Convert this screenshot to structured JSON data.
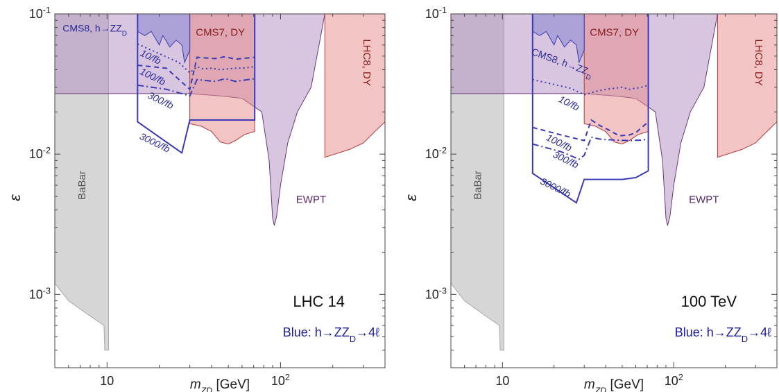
{
  "chart_data": [
    {
      "type": "area",
      "title": "LHC 14",
      "subtitle": "Blue: h→ZZ_D→4ℓ",
      "xlabel": "m_{Z_D} [GeV]",
      "ylabel": "ε",
      "xscale": "log",
      "yscale": "log",
      "xlim": [
        5,
        400
      ],
      "ylim": [
        0.0003,
        0.1
      ],
      "x_ticks": [
        "10",
        "10^2"
      ],
      "y_ticks": [
        "10^-3",
        "10^-2",
        "10^-1"
      ],
      "grid": false,
      "regions": [
        {
          "name": "BaBar",
          "color": "#c8c8c8",
          "label_at": [
            7.5,
            0.006
          ],
          "points": [
            [
              5,
              0.1
            ],
            [
              10.2,
              0.1
            ],
            [
              10.2,
              0.0004
            ],
            [
              9.7,
              0.0004
            ],
            [
              9.6,
              0.0006
            ],
            [
              8,
              0.0007
            ],
            [
              6,
              0.0009
            ],
            [
              5,
              0.0012
            ]
          ]
        },
        {
          "name": "EWPT",
          "color": "#b28bbf",
          "label_at": [
            150,
            0.0045
          ],
          "points": [
            [
              5,
              0.1
            ],
            [
              180,
              0.1
            ],
            [
              150,
              0.03
            ],
            [
              125,
              0.02
            ],
            [
              110,
              0.012
            ],
            [
              100,
              0.006
            ],
            [
              95,
              0.0036
            ],
            [
              92,
              0.0031
            ],
            [
              90,
              0.0035
            ],
            [
              86,
              0.009
            ],
            [
              78,
              0.02
            ],
            [
              60,
              0.025
            ],
            [
              45,
              0.026
            ],
            [
              30,
              0.027
            ],
            [
              20,
              0.027
            ],
            [
              5,
              0.027
            ]
          ]
        },
        {
          "name": "CMS7, DY",
          "color": "#e58a8a",
          "label_at": [
            45,
            0.07
          ],
          "points": [
            [
              30,
              0.1
            ],
            [
              71,
              0.1
            ],
            [
              71,
              0.0145
            ],
            [
              62,
              0.0138
            ],
            [
              55,
              0.0125
            ],
            [
              50,
              0.0118
            ],
            [
              45,
              0.0122
            ],
            [
              40,
              0.0145
            ],
            [
              35,
              0.0158
            ],
            [
              30,
              0.0165
            ]
          ]
        },
        {
          "name": "LHC8, DY",
          "color": "#e58a8a",
          "label_at": [
            300,
            0.045
          ],
          "points": [
            [
              180,
              0.1
            ],
            [
              400,
              0.1
            ],
            [
              400,
              0.017
            ],
            [
              350,
              0.0145
            ],
            [
              300,
              0.012
            ],
            [
              250,
              0.0108
            ],
            [
              180,
              0.0095
            ]
          ]
        },
        {
          "name": "CMS8, h→ZZ_D",
          "color": "#7f7fd0",
          "label_at": [
            8.5,
            0.075
          ],
          "points": [
            [
              15,
              0.1
            ],
            [
              30,
              0.1
            ],
            [
              30,
              0.055
            ],
            [
              28,
              0.045
            ],
            [
              27,
              0.06
            ],
            [
              25,
              0.065
            ],
            [
              23,
              0.058
            ],
            [
              21,
              0.07
            ],
            [
              20,
              0.06
            ],
            [
              18,
              0.075
            ],
            [
              16.5,
              0.07
            ],
            [
              15,
              0.075
            ]
          ]
        }
      ],
      "series": [
        {
          "name": "10/fb",
          "style": "dotted",
          "color": "#3a3ab4",
          "label_at": [
            17.5,
            0.047
          ],
          "x": [
            15,
            26,
            30,
            33,
            36,
            40,
            45,
            50,
            55,
            60,
            65,
            71
          ],
          "y": [
            0.061,
            0.045,
            0.038,
            0.042,
            0.0405,
            0.041,
            0.04,
            0.0405,
            0.041,
            0.041,
            0.0415,
            0.042
          ]
        },
        {
          "name": "100/fb",
          "style": "dashed",
          "color": "#3a3ab4",
          "label_at": [
            18,
            0.034
          ],
          "x": [
            15,
            22,
            30,
            33,
            37,
            42,
            48,
            55,
            60,
            65,
            71
          ],
          "y": [
            0.043,
            0.041,
            0.029,
            0.049,
            0.0485,
            0.048,
            0.0495,
            0.0475,
            0.048,
            0.0485,
            0.049
          ]
        },
        {
          "name": "300/fb",
          "style": "dashdot",
          "color": "#3a3ab4",
          "label_at": [
            20,
            0.023
          ],
          "x": [
            15,
            22,
            30,
            33,
            37,
            42,
            48,
            55,
            60,
            65,
            71
          ],
          "y": [
            0.031,
            0.029,
            0.026,
            0.034,
            0.0335,
            0.033,
            0.0345,
            0.033,
            0.0335,
            0.034,
            0.0345
          ]
        },
        {
          "name": "3000/fb",
          "style": "solid",
          "color": "#3a3ab4",
          "label_at": [
            18.5,
            0.0115
          ],
          "x": [
            15,
            15,
            27,
            30,
            71,
            71
          ],
          "y": [
            0.1,
            0.017,
            0.0102,
            0.0175,
            0.0175,
            0.1
          ]
        }
      ]
    },
    {
      "type": "area",
      "title": "100 TeV",
      "subtitle": "Blue: h→ZZ_D→4ℓ",
      "xlabel": "m_{Z_D} [GeV]",
      "ylabel": "ε",
      "xscale": "log",
      "yscale": "log",
      "xlim": [
        5,
        400
      ],
      "ylim": [
        0.0003,
        0.1
      ],
      "x_ticks": [
        "10",
        "10^2"
      ],
      "y_ticks": [
        "10^-3",
        "10^-2",
        "10^-1"
      ],
      "grid": false,
      "regions": [
        {
          "name": "BaBar",
          "color": "#c8c8c8",
          "label_at": [
            7.5,
            0.006
          ],
          "points": [
            [
              5,
              0.1
            ],
            [
              10.2,
              0.1
            ],
            [
              10.2,
              0.0004
            ],
            [
              9.7,
              0.0004
            ],
            [
              9.6,
              0.0006
            ],
            [
              8,
              0.0007
            ],
            [
              6,
              0.0009
            ],
            [
              5,
              0.0012
            ]
          ]
        },
        {
          "name": "EWPT",
          "color": "#b28bbf",
          "label_at": [
            150,
            0.0045
          ],
          "points": [
            [
              5,
              0.1
            ],
            [
              180,
              0.1
            ],
            [
              150,
              0.03
            ],
            [
              125,
              0.02
            ],
            [
              110,
              0.012
            ],
            [
              100,
              0.006
            ],
            [
              95,
              0.0036
            ],
            [
              92,
              0.0031
            ],
            [
              90,
              0.0035
            ],
            [
              86,
              0.009
            ],
            [
              78,
              0.02
            ],
            [
              60,
              0.025
            ],
            [
              45,
              0.026
            ],
            [
              30,
              0.027
            ],
            [
              20,
              0.027
            ],
            [
              5,
              0.027
            ]
          ]
        },
        {
          "name": "CMS7, DY",
          "color": "#e58a8a",
          "label_at": [
            45,
            0.07
          ],
          "points": [
            [
              30,
              0.1
            ],
            [
              71,
              0.1
            ],
            [
              71,
              0.0145
            ],
            [
              62,
              0.0138
            ],
            [
              55,
              0.0125
            ],
            [
              50,
              0.0118
            ],
            [
              45,
              0.0122
            ],
            [
              40,
              0.0145
            ],
            [
              35,
              0.0158
            ],
            [
              30,
              0.0165
            ]
          ]
        },
        {
          "name": "LHC8, DY",
          "color": "#e58a8a",
          "label_at": [
            300,
            0.045
          ],
          "points": [
            [
              180,
              0.1
            ],
            [
              400,
              0.1
            ],
            [
              400,
              0.017
            ],
            [
              350,
              0.0145
            ],
            [
              300,
              0.012
            ],
            [
              250,
              0.0108
            ],
            [
              180,
              0.0095
            ]
          ]
        },
        {
          "name": "CMS8, h→ZZ_D",
          "color": "#7f7fd0",
          "label_at": [
            22,
            0.043
          ],
          "points": [
            [
              15,
              0.1
            ],
            [
              30,
              0.1
            ],
            [
              30,
              0.055
            ],
            [
              28,
              0.045
            ],
            [
              27,
              0.06
            ],
            [
              25,
              0.065
            ],
            [
              23,
              0.058
            ],
            [
              21,
              0.07
            ],
            [
              20,
              0.06
            ],
            [
              18,
              0.075
            ],
            [
              16.5,
              0.07
            ],
            [
              15,
              0.075
            ]
          ]
        }
      ],
      "series": [
        {
          "name": "10/fb",
          "style": "dotted",
          "color": "#3a3ab4",
          "label_at": [
            24,
            0.022
          ],
          "x": [
            15,
            25,
            30,
            35,
            40,
            45,
            50,
            55,
            60,
            65,
            71
          ],
          "y": [
            0.034,
            0.0295,
            0.0265,
            0.028,
            0.029,
            0.0295,
            0.03,
            0.029,
            0.0295,
            0.03,
            0.031
          ]
        },
        {
          "name": "100/fb",
          "style": "dashed",
          "color": "#3a3ab4",
          "label_at": [
            21,
            0.0115
          ],
          "x": [
            15,
            22,
            30,
            33,
            37,
            42,
            48,
            55,
            60,
            65,
            71
          ],
          "y": [
            0.0155,
            0.0137,
            0.0125,
            0.0175,
            0.016,
            0.0148,
            0.0135,
            0.0137,
            0.0142,
            0.0155,
            0.017
          ]
        },
        {
          "name": "300/fb",
          "style": "dashdot",
          "color": "#3a3ab4",
          "label_at": [
            23,
            0.0087
          ],
          "x": [
            15,
            22,
            28,
            30,
            33,
            37,
            45,
            55,
            65,
            71
          ],
          "y": [
            0.0118,
            0.0104,
            0.0092,
            0.0098,
            0.0132,
            0.0128,
            0.0126,
            0.0125,
            0.0126,
            0.0128
          ]
        },
        {
          "name": "3000/fb",
          "style": "solid",
          "color": "#3a3ab4",
          "label_at": [
            20,
            0.0055
          ],
          "x": [
            15,
            15,
            27,
            30,
            40,
            50,
            60,
            71,
            71
          ],
          "y": [
            0.1,
            0.0073,
            0.0045,
            0.0066,
            0.0066,
            0.0066,
            0.0068,
            0.0076,
            0.1
          ]
        }
      ]
    }
  ]
}
